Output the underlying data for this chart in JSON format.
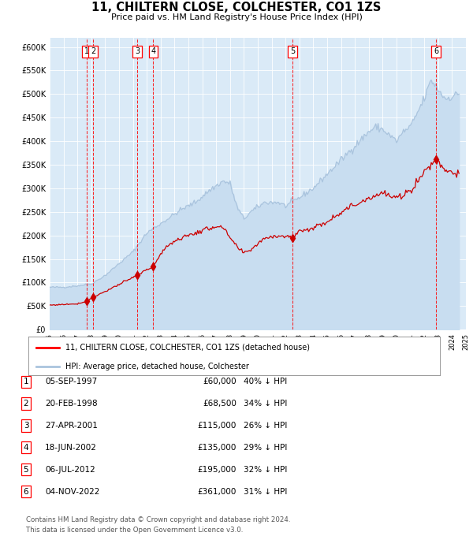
{
  "title": "11, CHILTERN CLOSE, COLCHESTER, CO1 1ZS",
  "subtitle": "Price paid vs. HM Land Registry's House Price Index (HPI)",
  "transactions": [
    {
      "num": 1,
      "date_float": 1997.674,
      "price": 60000,
      "label": "05-SEP-1997",
      "pct": "40% ↓ HPI"
    },
    {
      "num": 2,
      "date_float": 1998.13,
      "price": 68500,
      "label": "20-FEB-1998",
      "pct": "34% ↓ HPI"
    },
    {
      "num": 3,
      "date_float": 2001.32,
      "price": 115000,
      "label": "27-APR-2001",
      "pct": "26% ↓ HPI"
    },
    {
      "num": 4,
      "date_float": 2002.46,
      "price": 135000,
      "label": "18-JUN-2002",
      "pct": "29% ↓ HPI"
    },
    {
      "num": 5,
      "date_float": 2012.51,
      "price": 195000,
      "label": "06-JUL-2012",
      "pct": "32% ↓ HPI"
    },
    {
      "num": 6,
      "date_float": 2022.84,
      "price": 361000,
      "label": "04-NOV-2022",
      "pct": "31% ↓ HPI"
    }
  ],
  "legend_line1": "11, CHILTERN CLOSE, COLCHESTER, CO1 1ZS (detached house)",
  "legend_line2": "HPI: Average price, detached house, Colchester",
  "footnote1": "Contains HM Land Registry data © Crown copyright and database right 2024.",
  "footnote2": "This data is licensed under the Open Government Licence v3.0.",
  "hpi_color": "#aac4de",
  "hpi_fill_color": "#c8ddf0",
  "price_color": "#cc0000",
  "background_color": "#daeaf7",
  "grid_color": "#ffffff",
  "ylim_max": 620000,
  "ylim_min": 0,
  "xlim_min": 1995,
  "xlim_max": 2025,
  "yticks": [
    0,
    50000,
    100000,
    150000,
    200000,
    250000,
    300000,
    350000,
    400000,
    450000,
    500000,
    550000,
    600000
  ],
  "yticklabels": [
    "£0",
    "£50K",
    "£100K",
    "£150K",
    "£200K",
    "£250K",
    "£300K",
    "£350K",
    "£400K",
    "£450K",
    "£500K",
    "£550K",
    "£600K"
  ],
  "hpi_anchors_x": [
    1995.0,
    1996.0,
    1997.0,
    1998.0,
    1999.0,
    2000.0,
    2001.0,
    2002.0,
    2003.5,
    2004.5,
    2005.5,
    2006.5,
    2007.5,
    2008.0,
    2008.5,
    2009.0,
    2009.5,
    2010.5,
    2011.5,
    2012.0,
    2013.0,
    2014.0,
    2015.0,
    2016.0,
    2017.0,
    2018.0,
    2018.5,
    2019.0,
    2020.0,
    2020.5,
    2021.0,
    2021.5,
    2022.0,
    2022.5,
    2023.0,
    2023.5,
    2024.0,
    2024.5
  ],
  "hpi_anchors_y": [
    90000,
    90000,
    93000,
    97000,
    115000,
    140000,
    165000,
    205000,
    235000,
    255000,
    270000,
    295000,
    315000,
    310000,
    260000,
    235000,
    250000,
    270000,
    270000,
    262000,
    280000,
    300000,
    330000,
    360000,
    390000,
    420000,
    430000,
    425000,
    400000,
    420000,
    430000,
    460000,
    490000,
    530000,
    510000,
    490000,
    495000,
    500000
  ],
  "price_anchors_x": [
    1995.0,
    1997.0,
    1997.674,
    1998.13,
    2001.32,
    2002.46,
    2003.5,
    2004.5,
    2005.5,
    2006.5,
    2007.0,
    2007.5,
    2008.5,
    2009.0,
    2009.5,
    2010.5,
    2011.5,
    2012.51,
    2013.0,
    2014.0,
    2015.0,
    2016.0,
    2017.0,
    2018.0,
    2019.0,
    2020.0,
    2021.0,
    2022.0,
    2022.84,
    2023.5,
    2024.5
  ],
  "price_anchors_y": [
    52000,
    55000,
    60000,
    68500,
    115000,
    135000,
    180000,
    195000,
    205000,
    215000,
    220000,
    215000,
    175000,
    162000,
    170000,
    195000,
    200000,
    195000,
    210000,
    215000,
    230000,
    250000,
    265000,
    280000,
    290000,
    278000,
    295000,
    335000,
    361000,
    340000,
    330000
  ]
}
